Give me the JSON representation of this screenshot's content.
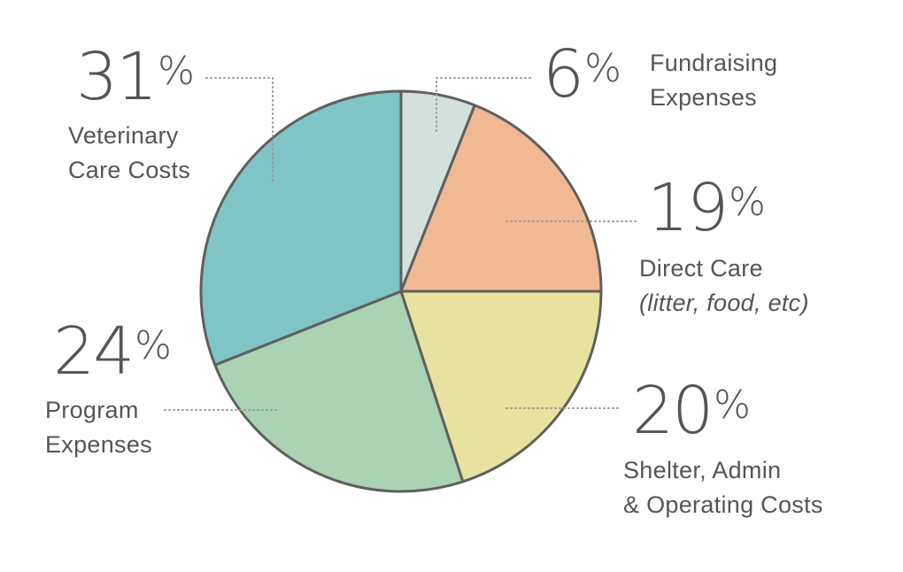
{
  "chart_data": {
    "type": "pie",
    "percent_sign": "%",
    "slices": [
      {
        "label_line1": "Fundraising",
        "label_line2": "Expenses",
        "value": 6,
        "value_text": "6",
        "color": "#d4e0dc"
      },
      {
        "label_line1": "Direct Care",
        "label_line2": "(litter, food, etc)",
        "value": 19,
        "value_text": "19",
        "color": "#f0b994"
      },
      {
        "label_line1": "Shelter, Admin",
        "label_line2": "& Operating Costs",
        "value": 20,
        "value_text": "20",
        "color": "#e8e2a0"
      },
      {
        "label_line1": "Program",
        "label_line2": "Expenses",
        "value": 24,
        "value_text": "24",
        "color": "#a9d3b3"
      },
      {
        "label_line1": "Veterinary",
        "label_line2": "Care Costs",
        "value": 31,
        "value_text": "31",
        "color": "#7fc5c5"
      }
    ],
    "stroke_color": "#5f5f5f",
    "leader_color": "#9a9a9a"
  }
}
